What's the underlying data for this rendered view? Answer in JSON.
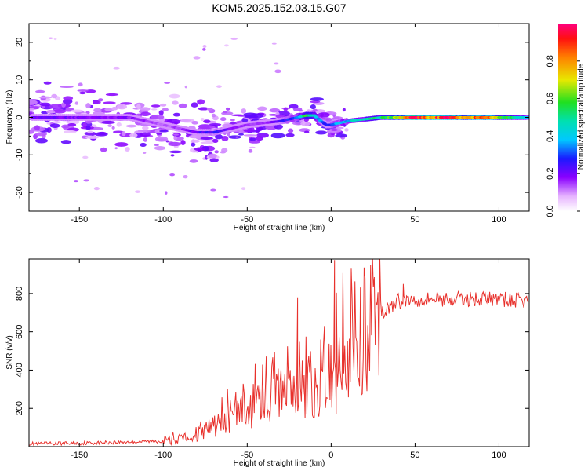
{
  "title": "KOM5.2025.152.03.15.G07",
  "chart_data": [
    {
      "type": "heatmap",
      "xlabel": "Height of straight line (km)",
      "ylabel": "Frequency (Hz)",
      "xlim": [
        -180,
        118
      ],
      "ylim": [
        -25,
        25
      ],
      "xticks": [
        -150,
        -100,
        -50,
        0,
        50,
        100
      ],
      "yticks": [
        -20,
        -10,
        0,
        10,
        20
      ],
      "colorbar": {
        "label": "Normalized spectral amplitude",
        "range": [
          0,
          1
        ],
        "ticks": [
          "0.0",
          "0.2",
          "0.4",
          "0.6",
          "0.8"
        ]
      },
      "ridge": {
        "x": [
          -175,
          -160,
          -140,
          -120,
          -100,
          -90,
          -80,
          -70,
          -60,
          -50,
          -40,
          -30,
          -20,
          -15,
          -10,
          -6,
          -3,
          0,
          5,
          10,
          20,
          30,
          40,
          50,
          60,
          70,
          80,
          90,
          100,
          110,
          118
        ],
        "freq": [
          0,
          0,
          0,
          0,
          -2,
          -3,
          -4,
          -4,
          -3,
          -2,
          -1.5,
          -1,
          0,
          0.5,
          0.5,
          -1,
          -2,
          -2,
          -1.5,
          -1,
          -0.5,
          0,
          0,
          0,
          0,
          0,
          0,
          0,
          0,
          0,
          0
        ],
        "amplitude": [
          0.2,
          0.2,
          0.18,
          0.18,
          0.12,
          0.15,
          0.22,
          0.25,
          0.18,
          0.15,
          0.15,
          0.22,
          0.35,
          0.55,
          0.5,
          0.3,
          0.25,
          0.3,
          0.35,
          0.4,
          0.45,
          0.5,
          0.7,
          0.95,
          0.8,
          0.95,
          0.7,
          0.9,
          0.6,
          0.5,
          0.35
        ]
      }
    },
    {
      "type": "line",
      "xlabel": "Height of straight line (km)",
      "ylabel": "SNR (v/v)",
      "xlim": [
        -180,
        118
      ],
      "ylim": [
        0,
        980
      ],
      "xticks": [
        -150,
        -100,
        -50,
        0,
        50,
        100
      ],
      "yticks": [
        200,
        400,
        600,
        800
      ],
      "color": "#e8312c",
      "series": [
        {
          "x": [
            -180,
            -150,
            -120,
            -100,
            -90,
            -80,
            -70,
            -60,
            -50,
            -40,
            -30,
            -20,
            -10,
            0,
            10,
            20,
            30,
            40,
            50,
            60,
            70,
            80,
            90,
            100,
            110,
            118
          ],
          "values": [
            15,
            18,
            25,
            30,
            35,
            60,
            110,
            160,
            200,
            240,
            260,
            280,
            320,
            400,
            520,
            620,
            700,
            760,
            770,
            775,
            770,
            770,
            775,
            770,
            765,
            760
          ]
        }
      ],
      "spikes": [
        {
          "x": -20,
          "value": 780
        },
        {
          "x": 2,
          "value": 975
        },
        {
          "x": 3,
          "value": 170
        },
        {
          "x": 43,
          "value": 850
        }
      ]
    }
  ]
}
